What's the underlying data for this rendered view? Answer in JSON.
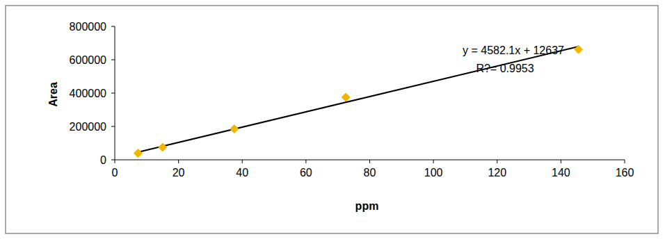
{
  "chart_data": {
    "type": "scatter",
    "x_label": "ppm",
    "y_label": "Area",
    "x": [
      7.3,
      15,
      37.5,
      72.5,
      145.5
    ],
    "series": [
      {
        "color": "#f2b600",
        "marker": "diamond",
        "values": [
          40000,
          75000,
          185000,
          375000,
          662000
        ]
      }
    ],
    "trendline": {
      "slope": 4582.1,
      "intercept": 12637
    },
    "annotations": [
      "y = 4582.1x + 12637",
      "R?= 0.9953"
    ],
    "xlim": [
      0,
      160
    ],
    "xticks": [
      0,
      20,
      40,
      60,
      80,
      100,
      120,
      140,
      160
    ],
    "ylim": [
      0,
      800000
    ],
    "yticks": [
      0,
      200000,
      400000,
      600000,
      800000
    ],
    "grid": false
  }
}
